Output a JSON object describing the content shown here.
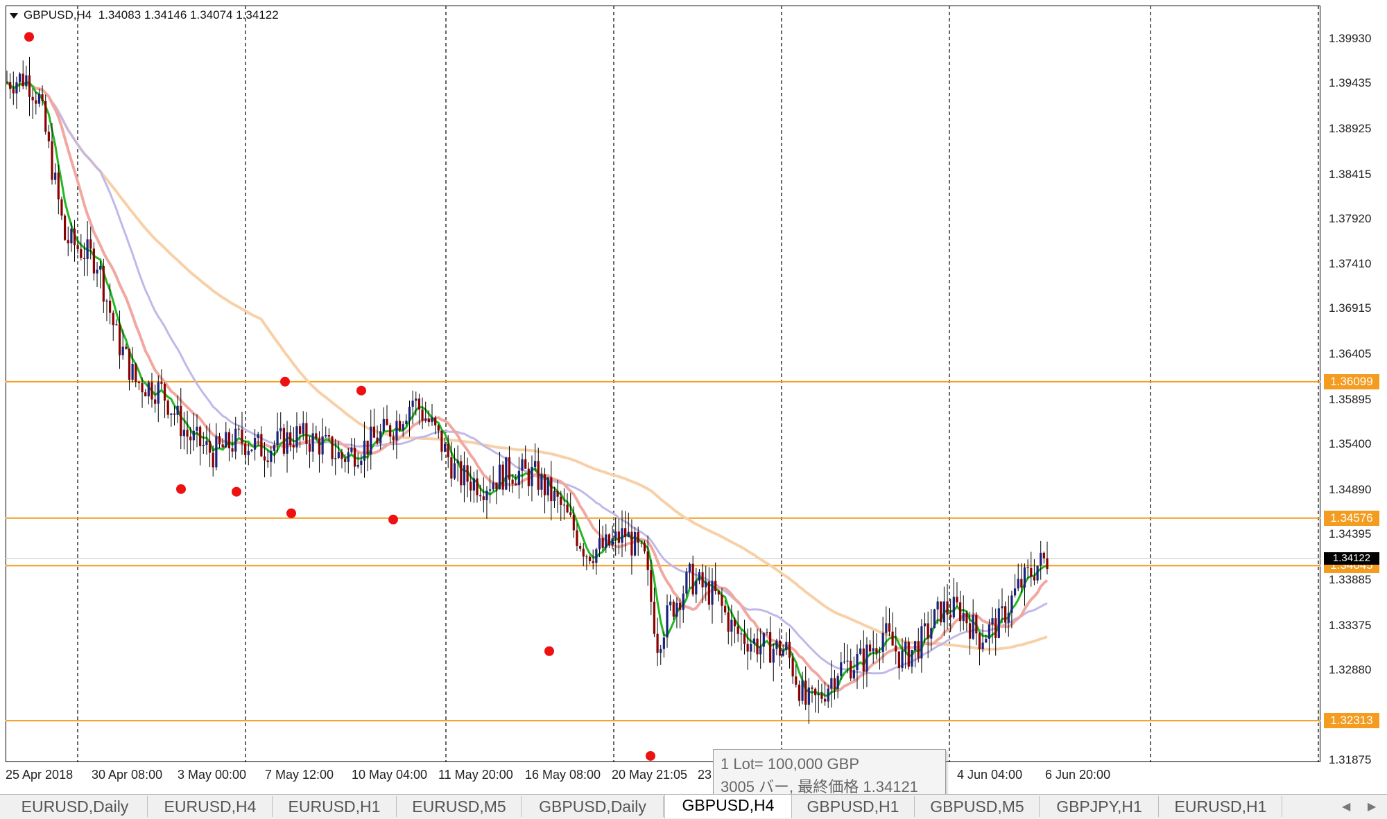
{
  "header": {
    "title": "GBPUSD,H4",
    "ohlc": "1.34083 1.34146 1.34074 1.34122"
  },
  "price_axis": [
    "1.39930",
    "1.39435",
    "1.38925",
    "1.38415",
    "1.37920",
    "1.37410",
    "1.36915",
    "1.36405",
    "1.35895",
    "1.35400",
    "1.34890",
    "1.34395",
    "1.33885",
    "1.33375",
    "1.32880",
    "1.31875"
  ],
  "hlines": [
    {
      "label": "1.36099",
      "price": 1.36099
    },
    {
      "label": "1.34576",
      "price": 1.34576
    },
    {
      "label": "1.34045",
      "price": 1.34045
    },
    {
      "label": "1.32313",
      "price": 1.32313
    }
  ],
  "current_price": {
    "label": "1.34122",
    "price": 1.34122
  },
  "time_axis": [
    "25 Apr 2018",
    "30 Apr 08:00",
    "3 May 00:00",
    "7 May 12:00",
    "10 May 04:00",
    "11 May 20:00",
    "16 May 08:00",
    "20 May 21:05",
    "23",
    "4 Jun 04:00",
    "6 Jun 20:00"
  ],
  "tooltip": {
    "line1": "1 Lot= 100,000 GBP",
    "line2": "3005 バー, 最終価格 1.34121"
  },
  "tabs": [
    {
      "label": "EURUSD,Daily",
      "active": false
    },
    {
      "label": "EURUSD,H4",
      "active": false
    },
    {
      "label": "EURUSD,H1",
      "active": false
    },
    {
      "label": "EURUSD,M5",
      "active": false
    },
    {
      "label": "GBPUSD,Daily",
      "active": false
    },
    {
      "label": "GBPUSD,H4",
      "active": true
    },
    {
      "label": "GBPUSD,H1",
      "active": false
    },
    {
      "label": "GBPUSD,M5",
      "active": false
    },
    {
      "label": "GBPJPY,H1",
      "active": false
    },
    {
      "label": "EURUSD,H1",
      "active": false
    }
  ],
  "colors": {
    "bull": "#1a237e",
    "bear": "#8b0000",
    "hline": "#f39c1f",
    "ma_fast": "#22b822",
    "ma_mid": "#f0a8a0",
    "ma_slow": "#f8d0a8",
    "ma_lav": "#c0b8e8",
    "fractal": "#ee1111"
  },
  "chart_data": {
    "type": "candlestick",
    "symbol": "GBPUSD",
    "timeframe": "H4",
    "ylim": [
      1.3185,
      1.403
    ],
    "fractal_highs": [
      1.3995,
      1.361,
      1.36
    ],
    "fractal_lows": [
      1.349,
      1.3487,
      1.3463,
      1.3456,
      1.3309,
      1.3192
    ]
  }
}
